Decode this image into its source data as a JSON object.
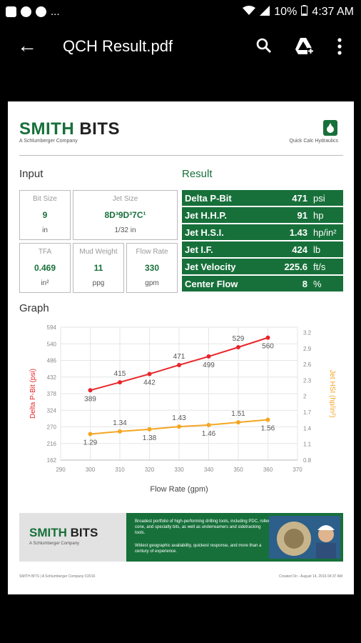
{
  "status_bar": {
    "battery": "10%",
    "time": "4:37 AM",
    "more": "..."
  },
  "app_bar": {
    "title": "QCH Result.pdf"
  },
  "doc": {
    "logo_main": "SMITH",
    "logo_bold": "BITS",
    "logo_sub": "A Schlumberger Company",
    "quick_calc_label": "Quick Calc Hydraulics",
    "input_title": "Input",
    "result_title": "Result",
    "graph_title": "Graph",
    "inputs": {
      "bit_size": {
        "label": "Bit Size",
        "value": "9",
        "unit": "in"
      },
      "jet_size": {
        "label": "Jet Size",
        "value": "8D³9D³7C¹",
        "unit": "1/32 in"
      },
      "tfa": {
        "label": "TFA",
        "value": "0.469",
        "unit": "in²"
      },
      "mud_weight": {
        "label": "Mud Weight",
        "value": "11",
        "unit": "ppg"
      },
      "flow_rate": {
        "label": "Flow Rate",
        "value": "330",
        "unit": "gpm"
      }
    },
    "results": [
      {
        "name": "Delta P-Bit",
        "value": "471",
        "unit": "psi"
      },
      {
        "name": "Jet H.H.P.",
        "value": "91",
        "unit": "hp"
      },
      {
        "name": "Jet H.S.I.",
        "value": "1.43",
        "unit": "hp/in²"
      },
      {
        "name": "Jet I.F.",
        "value": "424",
        "unit": "lb"
      },
      {
        "name": "Jet Velocity",
        "value": "225.6",
        "unit": "ft/s"
      },
      {
        "name": "Center Flow",
        "value": "8",
        "unit": "%"
      }
    ],
    "banner": {
      "logo_main": "SMITH",
      "logo_bold": "BITS",
      "logo_sub": "A Schlumberger Company",
      "bullet1": "Broadest portfolio of high-performing drilling tools, including PDC, roller cone, and specialty bits, as well as underreamers and sidetracking tools.",
      "bullet2": "Widest geographic availability, quickest response, and more than a century of experience."
    },
    "footer_left": "SMITH BITS | A Schlumberger Company ©2016",
    "footer_right": "Created On - August 14, 2016 04:37 AM"
  },
  "chart_data": {
    "type": "line",
    "x": [
      300,
      310,
      320,
      330,
      340,
      350,
      360
    ],
    "xlim": [
      290,
      370
    ],
    "x_ticks": [
      290,
      300,
      310,
      320,
      330,
      340,
      350,
      360,
      370
    ],
    "xlabel": "Flow Rate (gpm)",
    "ylabel_left": "Delta P-Bit (psi)",
    "ylabel_right": "Jet HSI (hp/in²)",
    "ylim_left": [
      162,
      594
    ],
    "y_ticks_left": [
      162,
      216,
      270,
      324,
      378,
      432,
      486,
      540,
      594
    ],
    "ylim_right": [
      0.8,
      3.3
    ],
    "y_ticks_right": [
      0.8,
      1.1,
      1.4,
      1.7,
      2,
      2.3,
      2.6,
      2.9,
      3.2
    ],
    "grid": true,
    "series": [
      {
        "axis": "left",
        "color": "#e8262b",
        "values": [
          389,
          415,
          442,
          471,
          499,
          529,
          560
        ],
        "labels": [
          "389",
          "415",
          "442",
          "471",
          "499",
          "529",
          "560"
        ]
      },
      {
        "axis": "right",
        "color": "#f5a623",
        "values": [
          1.29,
          1.34,
          1.38,
          1.43,
          1.46,
          1.51,
          1.56
        ],
        "labels": [
          "1.29",
          "1.34",
          "1.38",
          "1.43",
          "1.46",
          "1.51",
          "1.56"
        ]
      }
    ]
  }
}
